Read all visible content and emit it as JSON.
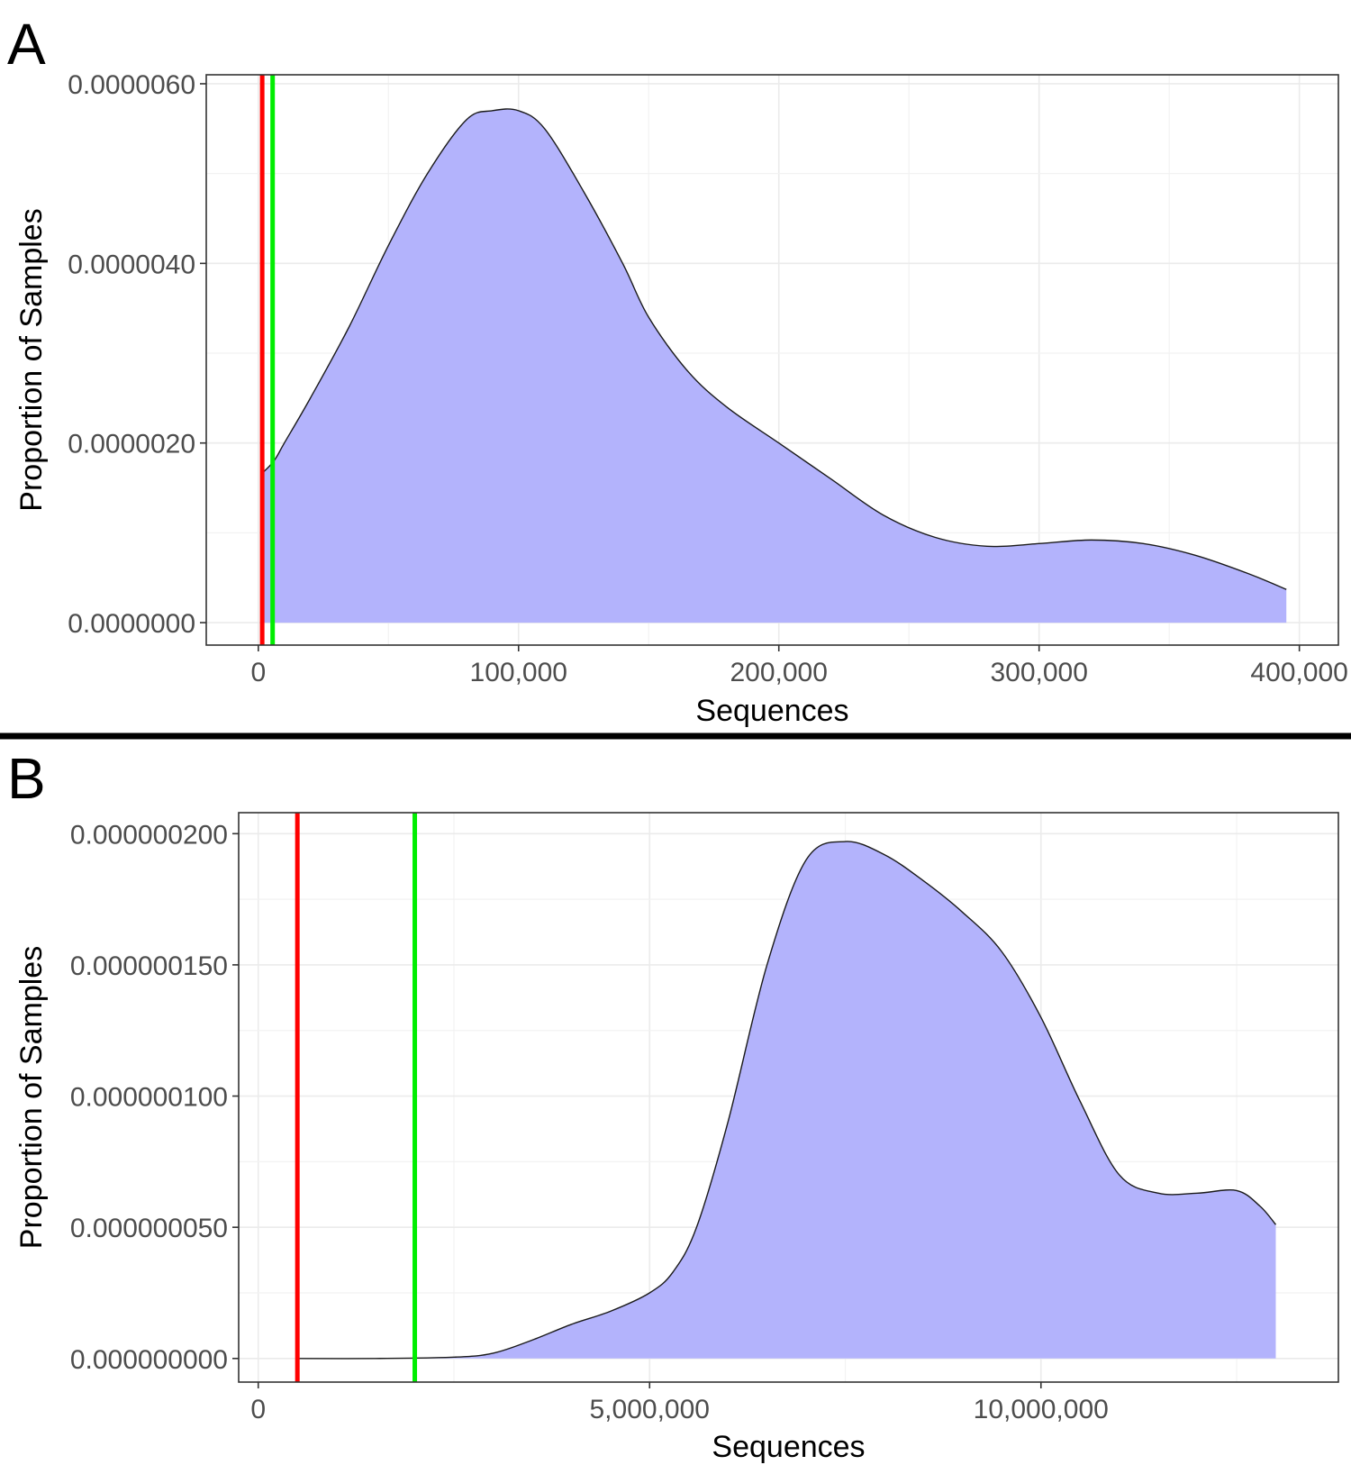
{
  "chart_data": [
    {
      "panel": "A",
      "type": "area",
      "xlabel": "Sequences",
      "ylabel": "Proportion of Samples",
      "xlim": [
        -20000,
        415000
      ],
      "ylim": [
        -2.5e-07,
        6.1e-06
      ],
      "x_ticks": [
        0,
        100000,
        200000,
        300000,
        400000
      ],
      "x_tick_labels": [
        "0",
        "100,000",
        "200,000",
        "300,000",
        "400,000"
      ],
      "y_ticks": [
        0,
        2e-06,
        4e-06,
        6e-06
      ],
      "y_tick_labels": [
        "0.0000000",
        "0.0000020",
        "0.0000040",
        "0.0000060"
      ],
      "grid": true,
      "fill_color": "#b3b3fc",
      "vlines": [
        {
          "x": 1500,
          "color": "#ff0000"
        },
        {
          "x": 5500,
          "color": "#00ee00"
        }
      ],
      "x": [
        1000,
        6000,
        10000,
        20000,
        35000,
        50000,
        65000,
        80000,
        90000,
        100000,
        110000,
        125000,
        140000,
        150000,
        165000,
        180000,
        200000,
        220000,
        240000,
        260000,
        280000,
        300000,
        320000,
        340000,
        360000,
        380000,
        395000
      ],
      "y": [
        1.65e-06,
        1.8e-06,
        2e-06,
        2.5e-06,
        3.3e-06,
        4.2e-06,
        5e-06,
        5.6e-06,
        5.7e-06,
        5.7e-06,
        5.5e-06,
        4.8e-06,
        4e-06,
        3.4e-06,
        2.8e-06,
        2.4e-06,
        2e-06,
        1.6e-06,
        1.2e-06,
        9.5e-07,
        8.5e-07,
        8.8e-07,
        9.2e-07,
        8.8e-07,
        7.5e-07,
        5.5e-07,
        3.7e-07
      ]
    },
    {
      "panel": "B",
      "type": "area",
      "xlabel": "Sequences",
      "ylabel": "Proportion of Samples",
      "xlim": [
        -250000,
        13800000
      ],
      "ylim": [
        -9e-09,
        2.08e-07
      ],
      "x_ticks": [
        0,
        5000000,
        10000000
      ],
      "x_tick_labels": [
        "0",
        "5,000,000",
        "10,000,000"
      ],
      "y_ticks": [
        0,
        5e-08,
        1e-07,
        1.5e-07,
        2e-07
      ],
      "y_tick_labels": [
        "0.000000000",
        "0.000000050",
        "0.000000100",
        "0.000000150",
        "0.000000200"
      ],
      "grid": true,
      "fill_color": "#b3b3fc",
      "vlines": [
        {
          "x": 500000,
          "color": "#ff0000"
        },
        {
          "x": 2000000,
          "color": "#00ee00"
        }
      ],
      "x": [
        500000,
        1500000,
        2500000,
        3000000,
        3500000,
        4000000,
        4500000,
        5000000,
        5300000,
        5600000,
        6000000,
        6500000,
        7000000,
        7500000,
        8000000,
        8500000,
        9000000,
        9500000,
        10000000,
        10500000,
        11000000,
        11500000,
        12000000,
        12500000,
        12800000,
        13000000
      ],
      "y": [
        0,
        0,
        5e-10,
        2e-09,
        7e-09,
        1.3e-08,
        1.8e-08,
        2.5e-08,
        3.3e-08,
        5e-08,
        9e-08,
        1.5e-07,
        1.9e-07,
        1.97e-07,
        1.92e-07,
        1.82e-07,
        1.7e-07,
        1.55e-07,
        1.3e-07,
        9.8e-08,
        7e-08,
        6.3e-08,
        6.3e-08,
        6.4e-08,
        5.8e-08,
        5.1e-08
      ]
    }
  ]
}
